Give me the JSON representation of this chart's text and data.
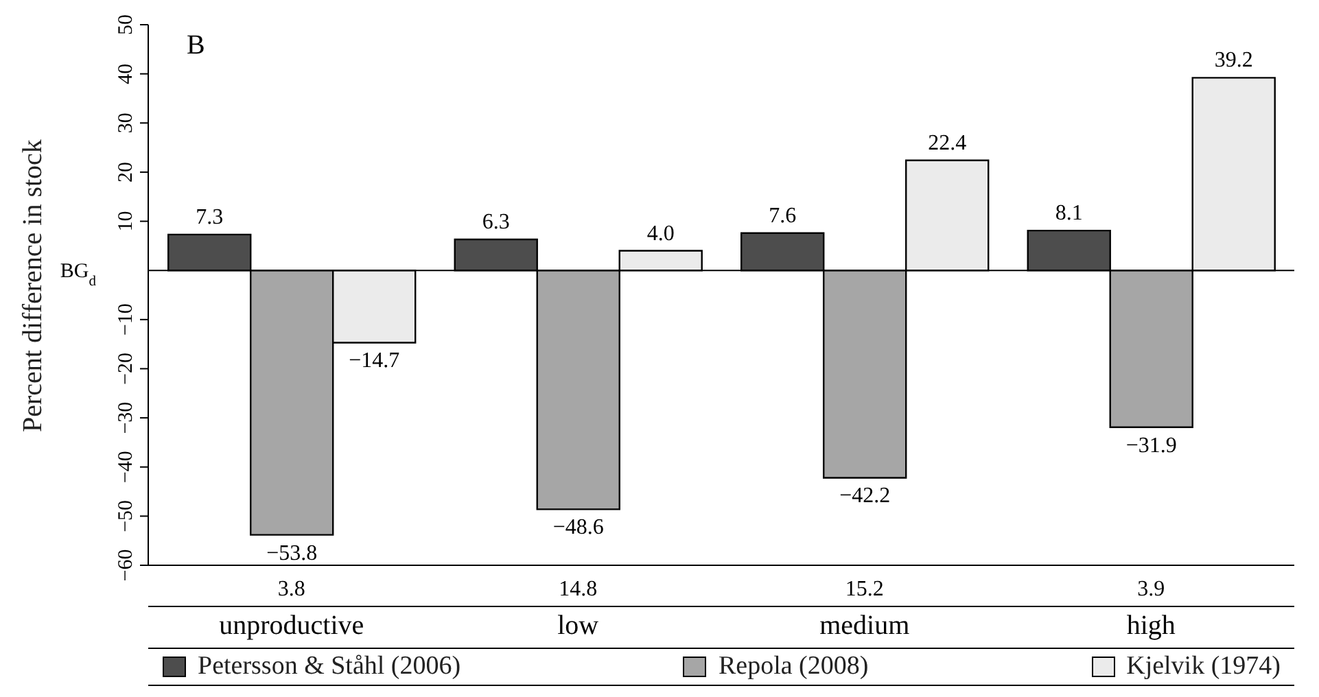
{
  "chart_data": {
    "type": "bar",
    "title": "B",
    "ylabel": "Percent difference in stock",
    "categories": [
      "unproductive",
      "low",
      "medium",
      "high"
    ],
    "series": [
      {
        "name": "Petersson & Ståhl (2006)",
        "color": "#4d4d4d",
        "values": [
          7.3,
          6.3,
          7.6,
          8.1
        ],
        "value_labels": [
          "7.3",
          "6.3",
          "7.6",
          "8.1"
        ]
      },
      {
        "name": "Repola (2008)",
        "color": "#a6a6a6",
        "values": [
          -53.8,
          -48.6,
          -42.2,
          -31.9
        ],
        "value_labels": [
          "−53.8",
          "−48.6",
          "−42.2",
          "−31.9"
        ]
      },
      {
        "name": "Kjelvik (1974)",
        "color": "#ebebeb",
        "values": [
          -14.7,
          4.0,
          22.4,
          39.2
        ],
        "value_labels": [
          "−14.7",
          "4.0",
          "22.4",
          "39.2"
        ]
      }
    ],
    "ylim": [
      -60,
      50
    ],
    "yticks": [
      -60,
      -50,
      -40,
      -30,
      -20,
      -10,
      10,
      20,
      30,
      40,
      50
    ],
    "ref_lines": [
      {
        "axis": "y",
        "value": 0,
        "label": "BG$_{d}$"
      }
    ],
    "annotations": [
      "3.8",
      "14.8",
      "15.2",
      "3.9"
    ],
    "legend": "bottom",
    "grid": false
  }
}
